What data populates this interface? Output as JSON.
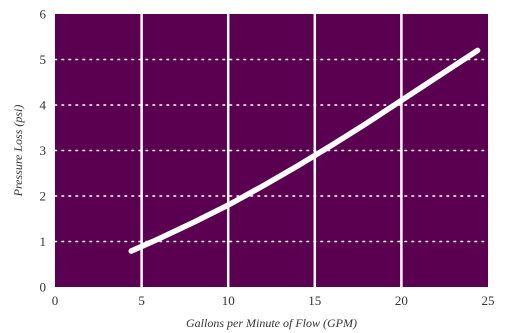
{
  "chart_data": {
    "type": "line",
    "xlabel": "Gallons per Minute of Flow (GPM)",
    "ylabel": "Pressure Loss (psi)",
    "xlim": [
      0,
      25
    ],
    "ylim": [
      0,
      6
    ],
    "x_ticks": [
      0,
      5,
      10,
      15,
      20,
      25
    ],
    "y_ticks": [
      0,
      1,
      2,
      3,
      4,
      5,
      6
    ],
    "grid": {
      "vertical": "solid",
      "horizontal": "dotted"
    },
    "colors": {
      "plot_background": "#5b0050",
      "line": "#ffffff",
      "grid": "#ffffff"
    },
    "series": [
      {
        "x": [
          4.4,
          6,
          8,
          10,
          12,
          14,
          16,
          18,
          20,
          22,
          24.4
        ],
        "y": [
          0.79,
          1.06,
          1.42,
          1.8,
          2.22,
          2.66,
          3.12,
          3.6,
          4.1,
          4.6,
          5.2
        ]
      }
    ]
  }
}
